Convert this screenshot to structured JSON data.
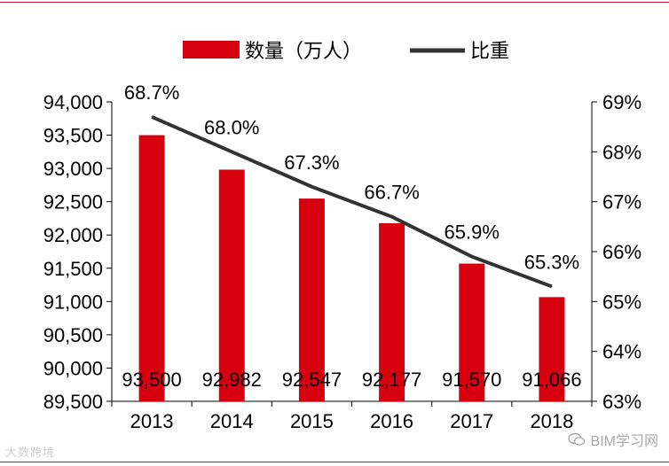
{
  "chart_data": {
    "type": "bar+line",
    "categories": [
      "2013",
      "2014",
      "2015",
      "2016",
      "2017",
      "2018"
    ],
    "series": [
      {
        "name": "数量（万人）",
        "type": "bar",
        "axis": "left",
        "values": [
          93500,
          92982,
          92547,
          92177,
          91570,
          91066
        ],
        "labels": [
          "93,500",
          "92,982",
          "92,547",
          "92,177",
          "91,570",
          "91,066"
        ]
      },
      {
        "name": "比重",
        "type": "line",
        "axis": "right",
        "values": [
          68.7,
          68.0,
          67.3,
          66.7,
          65.9,
          65.3
        ],
        "labels": [
          "68.7%",
          "68.0%",
          "67.3%",
          "66.7%",
          "65.9%",
          "65.3%"
        ]
      }
    ],
    "y_left": {
      "range": [
        89500,
        94000
      ],
      "ticks": [
        89500,
        90000,
        90500,
        91000,
        91500,
        92000,
        92500,
        93000,
        93500,
        94000
      ],
      "tick_labels": [
        "89,500",
        "90,000",
        "90,500",
        "91,000",
        "91,500",
        "92,000",
        "92,500",
        "93,000",
        "93,500",
        "94,000"
      ]
    },
    "y_right": {
      "range": [
        63,
        69
      ],
      "ticks": [
        63,
        64,
        65,
        66,
        67,
        68,
        69
      ],
      "tick_labels": [
        "63%",
        "64%",
        "65%",
        "66%",
        "67%",
        "68%",
        "69%"
      ]
    },
    "legend_position": "top-center",
    "grid": false
  },
  "colors": {
    "bar": "#d7000f",
    "line": "#333333",
    "axis": "#000000",
    "rule": "#c8102e"
  },
  "watermarks": {
    "left_text": "大数跨境",
    "right_text": "BIM学习网",
    "right_icon": "wechat-icon"
  }
}
